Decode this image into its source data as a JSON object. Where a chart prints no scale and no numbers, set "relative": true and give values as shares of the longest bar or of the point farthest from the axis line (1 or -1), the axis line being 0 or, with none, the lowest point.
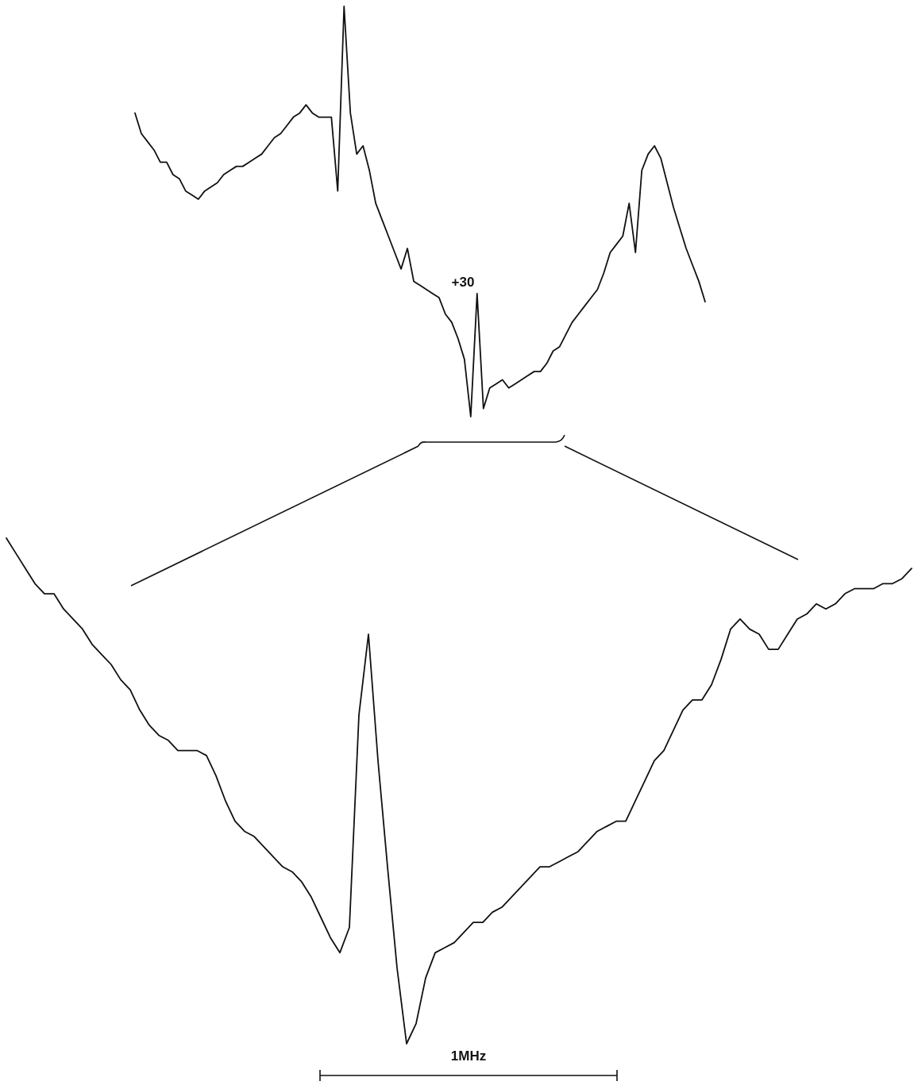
{
  "chart_data": [
    {
      "type": "line",
      "relative": true,
      "color": "#111111",
      "marker": "none",
      "annotations": [
        "+30"
      ],
      "categories": [
        null,
        null,
        null,
        null,
        null,
        null,
        null,
        null,
        null,
        null,
        null,
        null,
        null,
        null,
        null,
        null,
        null,
        null,
        null,
        null,
        null,
        null,
        null,
        null,
        null,
        null,
        null,
        null,
        null,
        null,
        null,
        null,
        null,
        null,
        null,
        null,
        null,
        null,
        null,
        null,
        null,
        null,
        null,
        null,
        null,
        null,
        null,
        null,
        null,
        null,
        null,
        null,
        null,
        null,
        null,
        null,
        null,
        null,
        null,
        null,
        null,
        null,
        null,
        null,
        null,
        null,
        null,
        null,
        null,
        null,
        null,
        null,
        null,
        null,
        null,
        null,
        null,
        null,
        null,
        null,
        null,
        null,
        null,
        null,
        null,
        null,
        null,
        null,
        null,
        null,
        null
      ],
      "values": [
        0.74,
        0.69,
        0.67,
        0.65,
        0.62,
        0.62,
        0.59,
        0.58,
        0.55,
        0.54,
        0.53,
        0.55,
        0.56,
        0.57,
        0.59,
        0.6,
        0.61,
        0.61,
        0.62,
        0.63,
        0.64,
        0.66,
        0.68,
        0.69,
        0.71,
        0.73,
        0.74,
        0.76,
        0.74,
        0.73,
        0.73,
        0.73,
        0.55,
        1,
        0.74,
        0.64,
        0.66,
        0.6,
        0.52,
        0.48,
        0.44,
        0.4,
        0.36,
        0.41,
        0.33,
        0.32,
        0.31,
        0.3,
        0.29,
        0.25,
        0.23,
        0.19,
        0.14,
        0,
        0.3,
        0.02,
        0.07,
        0.08,
        0.09,
        0.07,
        0.08,
        0.09,
        0.1,
        0.11,
        0.11,
        0.13,
        0.16,
        0.17,
        0.2,
        0.23,
        0.25,
        0.27,
        0.29,
        0.31,
        0.35,
        0.4,
        0.42,
        0.44,
        0.52,
        0.4,
        0.6,
        0.64,
        0.66,
        0.63,
        0.57,
        0.51,
        0.46,
        0.41,
        0.37,
        0.33,
        0.28
      ]
    },
    {
      "type": "line",
      "relative": true,
      "color": "#111111",
      "marker": "none",
      "annotations": [
        "1MHz"
      ],
      "categories": [
        null,
        null,
        null,
        null,
        null,
        null,
        null,
        null,
        null,
        null,
        null,
        null,
        null,
        null,
        null,
        null,
        null,
        null,
        null,
        null,
        null,
        null,
        null,
        null,
        null,
        null,
        null,
        null,
        null,
        null,
        null,
        null,
        null,
        null,
        null,
        null,
        null,
        null,
        null,
        null,
        null,
        null,
        null,
        null,
        null,
        null,
        null,
        null,
        null,
        null,
        null,
        null,
        null,
        null,
        null,
        null,
        null,
        null,
        null,
        null,
        null,
        null,
        null,
        null,
        null,
        null,
        null,
        null,
        null,
        null,
        null,
        null,
        null,
        null,
        null,
        null,
        null,
        null,
        null,
        null,
        null,
        null,
        null,
        null,
        null,
        null,
        null,
        null,
        null,
        null,
        null,
        null,
        null,
        null,
        null,
        null
      ],
      "values": [
        1.0,
        0.97,
        0.94,
        0.91,
        0.89,
        0.89,
        0.86,
        0.84,
        0.82,
        0.79,
        0.77,
        0.75,
        0.72,
        0.7,
        0.66,
        0.63,
        0.61,
        0.6,
        0.58,
        0.58,
        0.58,
        0.57,
        0.53,
        0.48,
        0.44,
        0.42,
        0.41,
        0.39,
        0.37,
        0.35,
        0.34,
        0.32,
        0.29,
        0.25,
        0.21,
        0.18,
        0.23,
        0.65,
        0.81,
        0.56,
        0.35,
        0.15,
        0,
        0.04,
        0.13,
        0.18,
        0.19,
        0.2,
        0.22,
        0.24,
        0.24,
        0.26,
        0.27,
        0.29,
        0.31,
        0.33,
        0.35,
        0.35,
        0.36,
        0.37,
        0.38,
        0.4,
        0.42,
        0.43,
        0.44,
        0.44,
        0.48,
        0.52,
        0.56,
        0.58,
        0.62,
        0.66,
        0.68,
        0.68,
        0.71,
        0.76,
        0.82,
        0.84,
        0.82,
        0.81,
        0.78,
        0.78,
        0.81,
        0.84,
        0.85,
        0.87,
        0.86,
        0.87,
        0.89,
        0.9,
        0.9,
        0.9,
        0.91,
        0.91,
        0.92,
        0.94
      ]
    }
  ]
}
